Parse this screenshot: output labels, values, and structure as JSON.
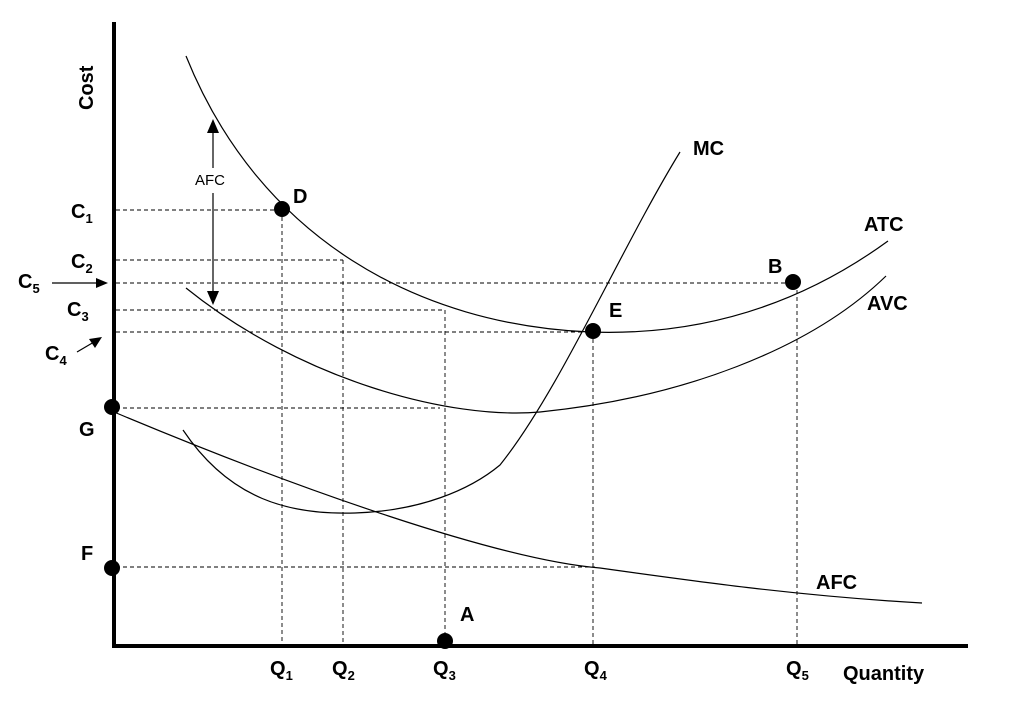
{
  "chart_data": {
    "type": "line",
    "axis_labels": {
      "y": "Cost",
      "x": "Quantity"
    },
    "curves": [
      {
        "name": "MC",
        "label": "MC"
      },
      {
        "name": "ATC",
        "label": "ATC"
      },
      {
        "name": "AVC",
        "label": "AVC"
      },
      {
        "name": "AFC",
        "label": "AFC"
      }
    ],
    "points": [
      {
        "label": "D"
      },
      {
        "label": "E"
      },
      {
        "label": "B"
      },
      {
        "label": "A"
      },
      {
        "label": "G"
      },
      {
        "label": "F"
      }
    ],
    "y_ticks": [
      {
        "main": "C",
        "sub": "1"
      },
      {
        "main": "C",
        "sub": "2"
      },
      {
        "main": "C",
        "sub": "3"
      },
      {
        "main": "C",
        "sub": "4"
      },
      {
        "main": "C",
        "sub": "5"
      }
    ],
    "x_ticks": [
      {
        "main": "Q",
        "sub": "1"
      },
      {
        "main": "Q",
        "sub": "2"
      },
      {
        "main": "Q",
        "sub": "3"
      },
      {
        "main": "Q",
        "sub": "4"
      },
      {
        "main": "Q",
        "sub": "5"
      }
    ],
    "annotation": {
      "text": "AFC"
    }
  }
}
